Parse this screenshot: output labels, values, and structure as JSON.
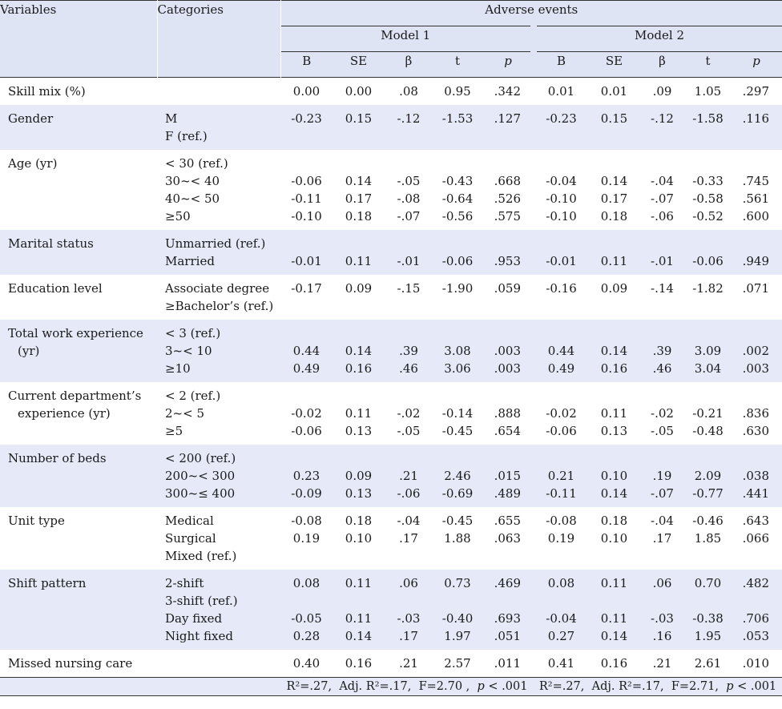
{
  "header": {
    "variables": "Variables",
    "categories": "Categories",
    "group": "Adverse events",
    "model1": "Model 1",
    "model2": "Model 2",
    "cols": [
      "B",
      "SE",
      "β",
      "t",
      "p"
    ]
  },
  "rows": [
    {
      "variable": [
        "Skill mix (%)"
      ],
      "categories": [
        ""
      ],
      "m1": [
        [
          "0.00",
          "0.00",
          ".08",
          "0.95",
          ".342"
        ]
      ],
      "m2": [
        [
          "0.01",
          "0.01",
          ".09",
          "1.05",
          ".297"
        ]
      ]
    },
    {
      "variable": [
        "Gender"
      ],
      "categories": [
        "M",
        "F (ref.)"
      ],
      "m1": [
        [
          "-0.23",
          "0.15",
          "-.12",
          "-1.53",
          ".127"
        ],
        [
          "",
          "",
          "",
          "",
          ""
        ]
      ],
      "m2": [
        [
          "-0.23",
          "0.15",
          "-.12",
          "-1.58",
          ".116"
        ],
        [
          "",
          "",
          "",
          "",
          ""
        ]
      ]
    },
    {
      "variable": [
        "Age (yr)"
      ],
      "categories": [
        "< 30 (ref.)",
        "30~< 40",
        "40~< 50",
        "≥50"
      ],
      "m1": [
        [
          "",
          "",
          "",
          "",
          ""
        ],
        [
          "-0.06",
          "0.14",
          "-.05",
          "-0.43",
          ".668"
        ],
        [
          "-0.11",
          "0.17",
          "-.08",
          "-0.64",
          ".526"
        ],
        [
          "-0.10",
          "0.18",
          "-.07",
          "-0.56",
          ".575"
        ]
      ],
      "m2": [
        [
          "",
          "",
          "",
          "",
          ""
        ],
        [
          "-0.04",
          "0.14",
          "-.04",
          "-0.33",
          ".745"
        ],
        [
          "-0.10",
          "0.17",
          "-.07",
          "-0.58",
          ".561"
        ],
        [
          "-0.10",
          "0.18",
          "-.06",
          "-0.52",
          ".600"
        ]
      ]
    },
    {
      "variable": [
        "Marital status"
      ],
      "categories": [
        "Unmarried (ref.)",
        "Married"
      ],
      "m1": [
        [
          "",
          "",
          "",
          "",
          ""
        ],
        [
          "-0.01",
          "0.11",
          "-.01",
          "-0.06",
          ".953"
        ]
      ],
      "m2": [
        [
          "",
          "",
          "",
          "",
          ""
        ],
        [
          "-0.01",
          "0.11",
          "-.01",
          "-0.06",
          ".949"
        ]
      ]
    },
    {
      "variable": [
        "Education level"
      ],
      "categories": [
        "Associate degree",
        "≥Bachelor’s (ref.)"
      ],
      "m1": [
        [
          "-0.17",
          "0.09",
          "-.15",
          "-1.90",
          ".059"
        ],
        [
          "",
          "",
          "",
          "",
          ""
        ]
      ],
      "m2": [
        [
          "-0.16",
          "0.09",
          "-.14",
          "-1.82",
          ".071"
        ],
        [
          "",
          "",
          "",
          "",
          ""
        ]
      ]
    },
    {
      "variable": [
        "Total work experience",
        "(yr)"
      ],
      "categories": [
        "< 3 (ref.)",
        "3~< 10",
        "≥10"
      ],
      "m1": [
        [
          "",
          "",
          "",
          "",
          ""
        ],
        [
          "0.44",
          "0.14",
          ".39",
          "3.08",
          ".003"
        ],
        [
          "0.49",
          "0.16",
          ".46",
          "3.06",
          ".003"
        ]
      ],
      "m2": [
        [
          "",
          "",
          "",
          "",
          ""
        ],
        [
          "0.44",
          "0.14",
          ".39",
          "3.09",
          ".002"
        ],
        [
          "0.49",
          "0.16",
          ".46",
          "3.04",
          ".003"
        ]
      ]
    },
    {
      "variable": [
        "Current department’s",
        "experience (yr)"
      ],
      "categories": [
        "< 2 (ref.)",
        "2~< 5",
        "≥5"
      ],
      "m1": [
        [
          "",
          "",
          "",
          "",
          ""
        ],
        [
          "-0.02",
          "0.11",
          "-.02",
          "-0.14",
          ".888"
        ],
        [
          "-0.06",
          "0.13",
          "-.05",
          "-0.45",
          ".654"
        ]
      ],
      "m2": [
        [
          "",
          "",
          "",
          "",
          ""
        ],
        [
          "-0.02",
          "0.11",
          "-.02",
          "-0.21",
          ".836"
        ],
        [
          "-0.06",
          "0.13",
          "-.05",
          "-0.48",
          ".630"
        ]
      ]
    },
    {
      "variable": [
        "Number of beds"
      ],
      "categories": [
        "< 200 (ref.)",
        "200~< 300",
        "300~≤ 400"
      ],
      "m1": [
        [
          "",
          "",
          "",
          "",
          ""
        ],
        [
          "0.23",
          "0.09",
          ".21",
          "2.46",
          ".015"
        ],
        [
          "-0.09",
          "0.13",
          "-.06",
          "-0.69",
          ".489"
        ]
      ],
      "m2": [
        [
          "",
          "",
          "",
          "",
          ""
        ],
        [
          "0.21",
          "0.10",
          ".19",
          "2.09",
          ".038"
        ],
        [
          "-0.11",
          "0.14",
          "-.07",
          "-0.77",
          ".441"
        ]
      ]
    },
    {
      "variable": [
        "Unit type"
      ],
      "categories": [
        "Medical",
        "Surgical",
        "Mixed (ref.)"
      ],
      "m1": [
        [
          "-0.08",
          "0.18",
          "-.04",
          "-0.45",
          ".655"
        ],
        [
          "0.19",
          "0.10",
          ".17",
          "1.88",
          ".063"
        ],
        [
          "",
          "",
          "",
          "",
          ""
        ]
      ],
      "m2": [
        [
          "-0.08",
          "0.18",
          "-.04",
          "-0.46",
          ".643"
        ],
        [
          "0.19",
          "0.10",
          ".17",
          "1.85",
          ".066"
        ],
        [
          "",
          "",
          "",
          "",
          ""
        ]
      ]
    },
    {
      "variable": [
        "Shift pattern"
      ],
      "categories": [
        "2-shift",
        "3-shift (ref.)",
        "Day fixed",
        "Night fixed"
      ],
      "m1": [
        [
          "0.08",
          "0.11",
          ".06",
          "0.73",
          ".469"
        ],
        [
          "",
          "",
          "",
          "",
          ""
        ],
        [
          "-0.05",
          "0.11",
          "-.03",
          "-0.40",
          ".693"
        ],
        [
          "0.28",
          "0.14",
          ".17",
          "1.97",
          ".051"
        ]
      ],
      "m2": [
        [
          "0.08",
          "0.11",
          ".06",
          "0.70",
          ".482"
        ],
        [
          "",
          "",
          "",
          "",
          ""
        ],
        [
          "-0.04",
          "0.11",
          "-.03",
          "-0.38",
          ".706"
        ],
        [
          "0.27",
          "0.14",
          ".16",
          "1.95",
          ".053"
        ]
      ]
    },
    {
      "variable": [
        "Missed nursing care"
      ],
      "categories": [
        ""
      ],
      "m1": [
        [
          "0.40",
          "0.16",
          ".21",
          "2.57",
          ".011"
        ]
      ],
      "m2": [
        [
          "0.41",
          "0.16",
          ".21",
          "2.61",
          ".010"
        ]
      ]
    }
  ],
  "footer": {
    "model1": {
      "r2": "R²=.27,",
      "adj": "Adj. R²=.17,",
      "f": "F=2.70 ,",
      "p_symbol": "p",
      "p_value": "< .001"
    },
    "model2": {
      "r2": "R²=.27,",
      "adj": "Adj. R²=.17,",
      "f": "F=2.71,",
      "p_symbol": "p",
      "p_value": "< .001"
    }
  }
}
